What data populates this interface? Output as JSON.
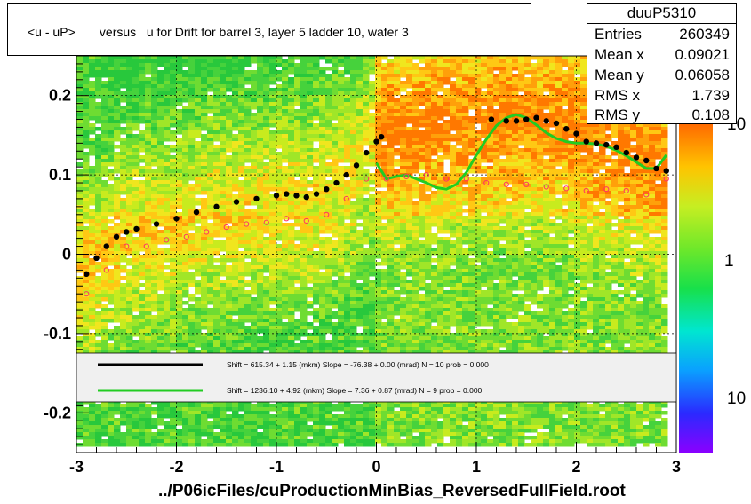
{
  "title": "<u - uP>       versus   u for Drift for barrel 3, layer 5 ladder 10, wafer 3",
  "stats": {
    "name": "duuP5310",
    "rows": [
      {
        "label": "Entries",
        "value": "260349"
      },
      {
        "label": "Mean x",
        "value": "0.09021"
      },
      {
        "label": "Mean y",
        "value": "0.06058"
      },
      {
        "label": "RMS x",
        "value": "1.739"
      },
      {
        "label": "RMS y",
        "value": "0.108"
      }
    ]
  },
  "fit_legend": [
    {
      "text": "Shift =   615.34 + 1.15 (mkm) Slope =   -76.38 + 0.00 (mrad)  N = 10 prob = 0.000",
      "color": "#000000"
    },
    {
      "text": "Shift =  1236.10 + 4.92 (mkm) Slope =     7.36 + 0.87 (mrad)  N = 9 prob = 0.000",
      "color": "#22cc22"
    }
  ],
  "footer": "../P06icFiles/cuProductionMinBias_ReversedFullField.root",
  "palette": {
    "black_fit": "#000000",
    "green_fit": "#22cc22",
    "profile_red": "#ff3366"
  },
  "chart_data": {
    "type": "heatmap",
    "xlim": [
      -3,
      3
    ],
    "ylim": [
      -0.25,
      0.25
    ],
    "x_ticks": [
      -3,
      -2,
      -1,
      0,
      1,
      2,
      3
    ],
    "x_tick_labels": [
      "-3",
      "-2",
      "-1",
      "0",
      "1",
      "2",
      "3"
    ],
    "y_ticks": [
      -0.2,
      -0.1,
      0,
      0.1,
      0.2
    ],
    "y_tick_labels": [
      "-0.2",
      "-0.1",
      "0",
      "0.1",
      "0.2"
    ],
    "z_scale": "log",
    "z_tick_labels": [
      "10",
      "1",
      "10"
    ],
    "grid": true,
    "profile_black": {
      "x": [
        -2.9,
        -2.8,
        -2.7,
        -2.6,
        -2.5,
        -2.4,
        -2.2,
        -2.0,
        -1.8,
        -1.6,
        -1.4,
        -1.2,
        -1.0,
        -0.9,
        -0.8,
        -0.7,
        -0.6,
        -0.5,
        -0.4,
        -0.3,
        -0.2,
        -0.1,
        0.0,
        0.05,
        1.15,
        1.3,
        1.4,
        1.5,
        1.6,
        1.7,
        1.8,
        1.9,
        2.0,
        2.1,
        2.2,
        2.3,
        2.4,
        2.5,
        2.6,
        2.7,
        2.8,
        2.9
      ],
      "y": [
        -0.025,
        -0.005,
        0.01,
        0.022,
        0.028,
        0.032,
        0.038,
        0.045,
        0.053,
        0.06,
        0.066,
        0.07,
        0.074,
        0.076,
        0.074,
        0.072,
        0.076,
        0.082,
        0.09,
        0.1,
        0.112,
        0.128,
        0.142,
        0.148,
        0.17,
        0.168,
        0.168,
        0.17,
        0.172,
        0.168,
        0.165,
        0.158,
        0.152,
        0.142,
        0.14,
        0.138,
        0.135,
        0.128,
        0.122,
        0.118,
        0.108,
        0.105
      ]
    },
    "profile_red": {
      "x": [
        -2.9,
        -2.7,
        -2.5,
        -2.3,
        -2.1,
        -1.9,
        -1.7,
        -1.5,
        -1.3,
        -1.1,
        -0.9,
        -0.7,
        -0.5,
        -0.3,
        -0.1,
        0.1,
        0.3,
        0.5,
        0.7,
        0.9,
        1.1,
        1.3,
        1.5,
        1.7,
        1.9,
        2.1,
        2.3,
        2.5,
        2.7,
        2.9
      ],
      "y": [
        -0.05,
        -0.02,
        0.01,
        0.01,
        0.018,
        0.022,
        0.028,
        0.034,
        0.038,
        0.04,
        0.045,
        0.042,
        0.05,
        0.07,
        0.095,
        0.095,
        0.098,
        0.1,
        0.095,
        0.095,
        0.09,
        0.088,
        0.088,
        0.085,
        0.083,
        0.08,
        0.082,
        0.08,
        0.075,
        0.095
      ]
    },
    "fit_green": {
      "x": [
        0.0,
        0.1,
        0.2,
        0.3,
        0.4,
        0.5,
        0.6,
        0.7,
        0.8,
        0.9,
        1.0,
        1.1,
        1.2,
        1.3,
        1.4,
        1.5,
        1.6,
        1.7,
        1.8,
        1.9,
        2.0,
        2.1,
        2.2,
        2.3,
        2.4,
        2.5,
        2.6,
        2.7,
        2.8,
        2.9
      ],
      "y": [
        0.115,
        0.095,
        0.098,
        0.1,
        0.095,
        0.09,
        0.084,
        0.082,
        0.088,
        0.103,
        0.125,
        0.145,
        0.162,
        0.172,
        0.176,
        0.172,
        0.163,
        0.153,
        0.146,
        0.142,
        0.14,
        0.14,
        0.139,
        0.136,
        0.131,
        0.124,
        0.116,
        0.108,
        0.108,
        0.125
      ]
    }
  }
}
